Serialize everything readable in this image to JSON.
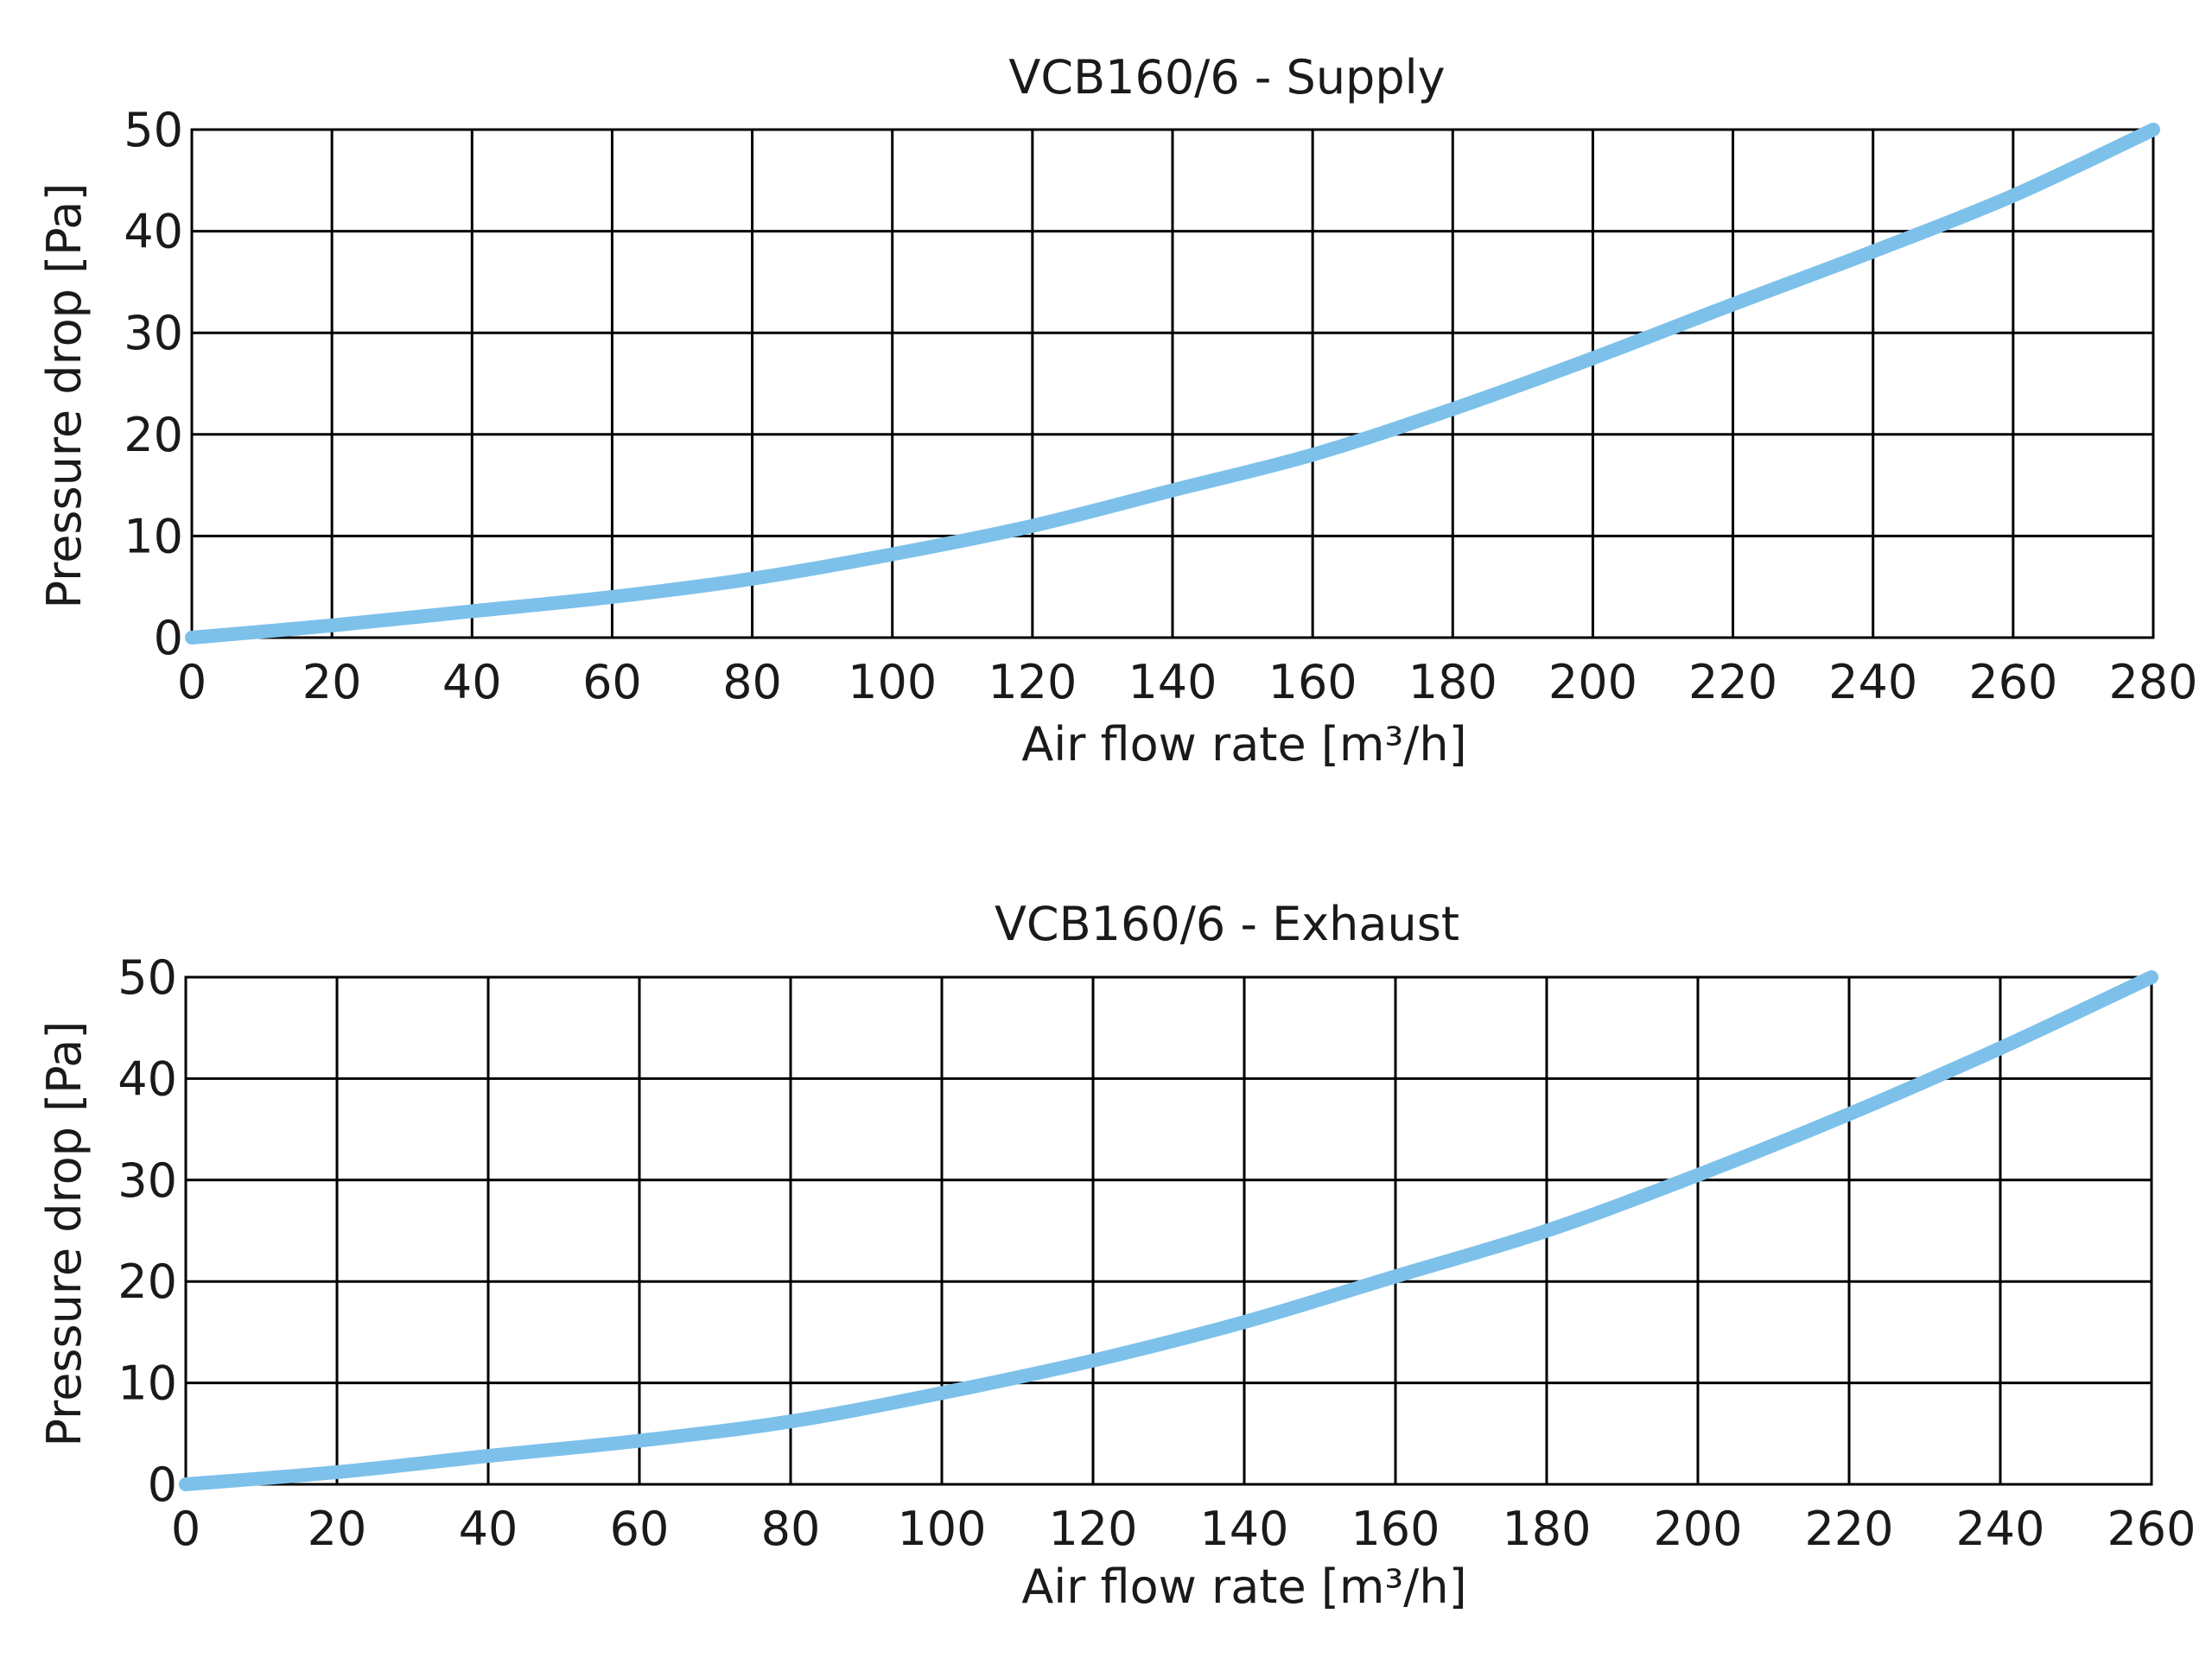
{
  "colors": {
    "curve": "#7dc1ea",
    "grid": "#000000",
    "text": "#1a1a1a",
    "background": "#ffffff"
  },
  "chart_data": [
    {
      "type": "line",
      "title": "VCB160/6 - Supply",
      "xlabel": "Air flow rate [m³/h]",
      "ylabel": "Pressure drop [Pa]",
      "xlim": [
        0,
        280
      ],
      "ylim": [
        0,
        50
      ],
      "x_ticks": [
        0,
        20,
        40,
        60,
        80,
        100,
        120,
        140,
        160,
        180,
        200,
        220,
        240,
        260,
        280
      ],
      "y_ticks": [
        0,
        10,
        20,
        30,
        40,
        50
      ],
      "grid": true,
      "series": [
        {
          "x": [
            0,
            20,
            40,
            60,
            80,
            100,
            120,
            140,
            160,
            180,
            200,
            220,
            240,
            260,
            280
          ],
          "y": [
            0,
            1.2,
            2.6,
            4.0,
            5.8,
            8.2,
            11.0,
            14.5,
            18.0,
            22.5,
            27.5,
            32.8,
            38.0,
            43.5,
            50.0
          ]
        }
      ]
    },
    {
      "type": "line",
      "title": "VCB160/6 - Exhaust",
      "xlabel": "Air flow rate [m³/h]",
      "ylabel": "Pressure drop [Pa]",
      "xlim": [
        0,
        260
      ],
      "ylim": [
        0,
        50
      ],
      "x_ticks": [
        0,
        20,
        40,
        60,
        80,
        100,
        120,
        140,
        160,
        180,
        200,
        220,
        240,
        260
      ],
      "y_ticks": [
        0,
        10,
        20,
        30,
        40,
        50
      ],
      "grid": true,
      "series": [
        {
          "x": [
            0,
            20,
            40,
            60,
            80,
            100,
            120,
            140,
            160,
            180,
            200,
            220,
            240,
            260
          ],
          "y": [
            0,
            1.2,
            2.8,
            4.3,
            6.2,
            9.0,
            12.2,
            16.0,
            20.5,
            25.0,
            30.5,
            36.5,
            43.0,
            50.0
          ]
        }
      ]
    }
  ]
}
